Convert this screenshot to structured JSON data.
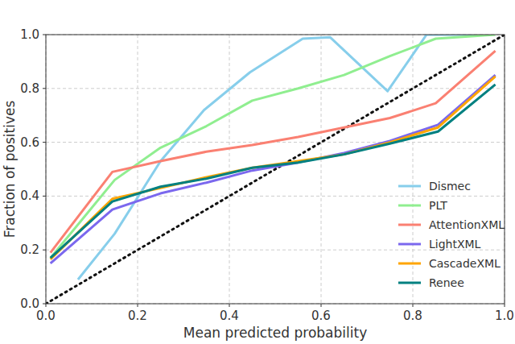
{
  "chart_data": {
    "type": "line",
    "x_label": "Mean predicted probability",
    "y_label": "Fraction of positives",
    "xlim": [
      0,
      1
    ],
    "ylim": [
      0,
      1
    ],
    "xticks": [
      {
        "value": 0,
        "label": "0.0"
      },
      0.2,
      0.4,
      0.6,
      0.8,
      {
        "value": 1,
        "label": "1.0"
      }
    ],
    "yticks": [
      {
        "value": 0,
        "label": "0.0"
      },
      0.2,
      0.4,
      0.6,
      0.8,
      {
        "value": 1,
        "label": "1.0"
      }
    ],
    "grid": true,
    "legend": "lower right",
    "series": [
      {
        "name": "Dismec",
        "color": "#87ceeb",
        "x": [
          0.07,
          0.15,
          0.25,
          0.345,
          0.445,
          0.56,
          0.62,
          0.745,
          0.83,
          0.97
        ],
        "values": [
          0.09,
          0.26,
          0.53,
          0.72,
          0.86,
          0.985,
          0.99,
          0.79,
          1.0,
          1.0
        ]
      },
      {
        "name": "PLT",
        "color": "#90ee90",
        "x": [
          0.01,
          0.15,
          0.25,
          0.35,
          0.45,
          0.55,
          0.65,
          0.75,
          0.85,
          0.98
        ],
        "values": [
          0.17,
          0.46,
          0.58,
          0.66,
          0.755,
          0.8,
          0.85,
          0.92,
          0.985,
          1.0
        ]
      },
      {
        "name": "AttentionXML",
        "color": "#fa8072",
        "x": [
          0.01,
          0.145,
          0.25,
          0.35,
          0.45,
          0.55,
          0.65,
          0.75,
          0.85,
          0.98
        ],
        "values": [
          0.19,
          0.49,
          0.53,
          0.565,
          0.59,
          0.62,
          0.655,
          0.69,
          0.745,
          0.94
        ]
      },
      {
        "name": "LightXML",
        "color": "#7b68ee",
        "x": [
          0.01,
          0.145,
          0.25,
          0.35,
          0.45,
          0.55,
          0.65,
          0.75,
          0.855,
          0.98
        ],
        "values": [
          0.15,
          0.35,
          0.41,
          0.45,
          0.495,
          0.525,
          0.56,
          0.605,
          0.665,
          0.85
        ]
      },
      {
        "name": "CascadeXML",
        "color": "#ffa500",
        "x": [
          0.01,
          0.145,
          0.25,
          0.35,
          0.45,
          0.55,
          0.65,
          0.75,
          0.855,
          0.98
        ],
        "values": [
          0.165,
          0.39,
          0.43,
          0.47,
          0.505,
          0.53,
          0.555,
          0.6,
          0.655,
          0.845
        ]
      },
      {
        "name": "Renee",
        "color": "#008080",
        "x": [
          0.01,
          0.145,
          0.25,
          0.35,
          0.45,
          0.55,
          0.65,
          0.75,
          0.855,
          0.98
        ],
        "values": [
          0.17,
          0.38,
          0.435,
          0.465,
          0.505,
          0.525,
          0.555,
          0.595,
          0.64,
          0.815
        ]
      }
    ]
  }
}
